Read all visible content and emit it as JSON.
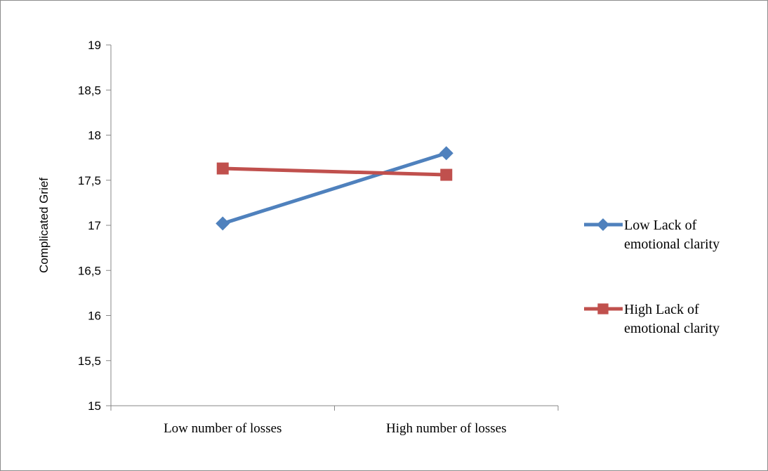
{
  "chart_data": {
    "type": "line",
    "categories": [
      "Low number of losses",
      "High number of losses"
    ],
    "ylabel": "Complicated Grief",
    "xlabel": "",
    "ylim": [
      15,
      19
    ],
    "yticks": [
      "15",
      "15,5",
      "16",
      "16,5",
      "17",
      "17,5",
      "18",
      "18,5",
      "19"
    ],
    "grid": false,
    "legend_position": "right",
    "series": [
      {
        "name_lines": [
          "Low Lack of",
          "emotional clarity"
        ],
        "values": [
          17.02,
          17.8
        ],
        "color": "#4f81bd",
        "marker": "diamond"
      },
      {
        "name_lines": [
          "High Lack of",
          "emotional clarity"
        ],
        "values": [
          17.63,
          17.56
        ],
        "color": "#c0504d",
        "marker": "square"
      }
    ]
  }
}
